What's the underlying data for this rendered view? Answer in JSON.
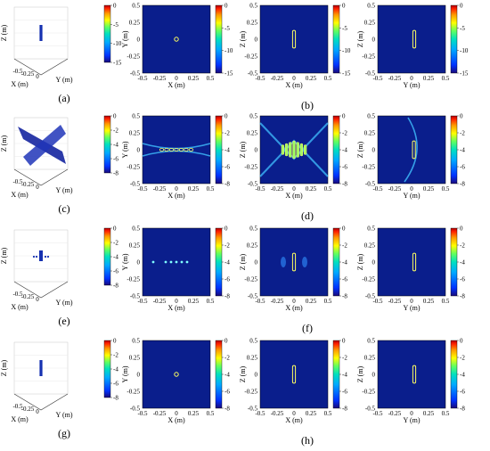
{
  "rows": [
    {
      "caption_3d": "(a)",
      "caption_2d": "(b)",
      "cbar_ticks": [
        "0",
        "-5",
        "-10",
        "-15"
      ],
      "cbar_min": -15,
      "kind": "target"
    },
    {
      "caption_3d": "(c)",
      "caption_2d": "(d)",
      "cbar_ticks": [
        "0",
        "-2",
        "-4",
        "-6",
        "-8"
      ],
      "cbar_min": -8,
      "kind": "sidelobes"
    },
    {
      "caption_3d": "(e)",
      "caption_2d": "(f)",
      "cbar_ticks": [
        "0",
        "-2",
        "-4",
        "-6",
        "-8"
      ],
      "cbar_min": -8,
      "kind": "clutter"
    },
    {
      "caption_3d": "(g)",
      "caption_2d": "(h)",
      "cbar_ticks": [
        "0",
        "-2",
        "-4",
        "-6",
        "-8"
      ],
      "cbar_min": -8,
      "kind": "target"
    }
  ],
  "axes": {
    "x": "X (m)",
    "y": "Y (m)",
    "z": "Z (m)",
    "ticks": [
      "-0.5",
      "-0.25",
      "0",
      "0.25",
      "0.5"
    ],
    "ticks_short": [
      "-0.5",
      "0",
      "0.5"
    ],
    "ticks_3d": [
      "-0.5",
      "-0.25",
      "0"
    ]
  },
  "panels": [
    {
      "name": "xy",
      "xlabel": "X (m)",
      "ylabel": "Y (m)"
    },
    {
      "name": "xz",
      "xlabel": "X (m)",
      "ylabel": "Z (m)"
    },
    {
      "name": "yz",
      "xlabel": "Y (m)",
      "ylabel": "Z (m)"
    }
  ],
  "colors": {
    "background": "#0a1e8c",
    "colormap": [
      "#1a0a7a",
      "#0033ff",
      "#00aaff",
      "#00e0c0",
      "#60ff60",
      "#ffff00",
      "#ff9900",
      "#ff2000",
      "#b00000"
    ]
  }
}
